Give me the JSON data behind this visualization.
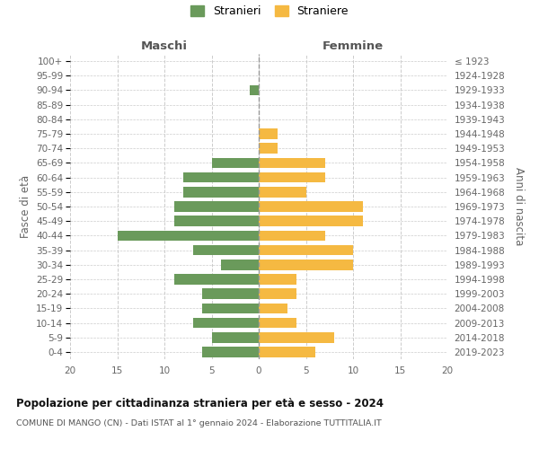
{
  "age_groups": [
    "0-4",
    "5-9",
    "10-14",
    "15-19",
    "20-24",
    "25-29",
    "30-34",
    "35-39",
    "40-44",
    "45-49",
    "50-54",
    "55-59",
    "60-64",
    "65-69",
    "70-74",
    "75-79",
    "80-84",
    "85-89",
    "90-94",
    "95-99",
    "100+"
  ],
  "birth_years": [
    "2019-2023",
    "2014-2018",
    "2009-2013",
    "2004-2008",
    "1999-2003",
    "1994-1998",
    "1989-1993",
    "1984-1988",
    "1979-1983",
    "1974-1978",
    "1969-1973",
    "1964-1968",
    "1959-1963",
    "1954-1958",
    "1949-1953",
    "1944-1948",
    "1939-1943",
    "1934-1938",
    "1929-1933",
    "1924-1928",
    "≤ 1923"
  ],
  "maschi": [
    6,
    5,
    7,
    6,
    6,
    9,
    4,
    7,
    15,
    9,
    9,
    8,
    8,
    5,
    0,
    0,
    0,
    0,
    1,
    0,
    0
  ],
  "femmine": [
    6,
    8,
    4,
    3,
    4,
    4,
    10,
    10,
    7,
    11,
    11,
    5,
    7,
    7,
    2,
    2,
    0,
    0,
    0,
    0,
    0
  ],
  "color_maschi": "#6a9a5b",
  "color_femmine": "#f5b942",
  "title": "Popolazione per cittadinanza straniera per età e sesso - 2024",
  "subtitle": "COMUNE DI MANGO (CN) - Dati ISTAT al 1° gennaio 2024 - Elaborazione TUTTITALIA.IT",
  "label_maschi": "Maschi",
  "label_femmine": "Femmine",
  "ylabel_left": "Fasce di età",
  "ylabel_right": "Anni di nascita",
  "xlim": 20,
  "background_color": "#ffffff",
  "grid_color": "#cccccc",
  "legend_stranieri": "Stranieri",
  "legend_straniere": "Straniere"
}
